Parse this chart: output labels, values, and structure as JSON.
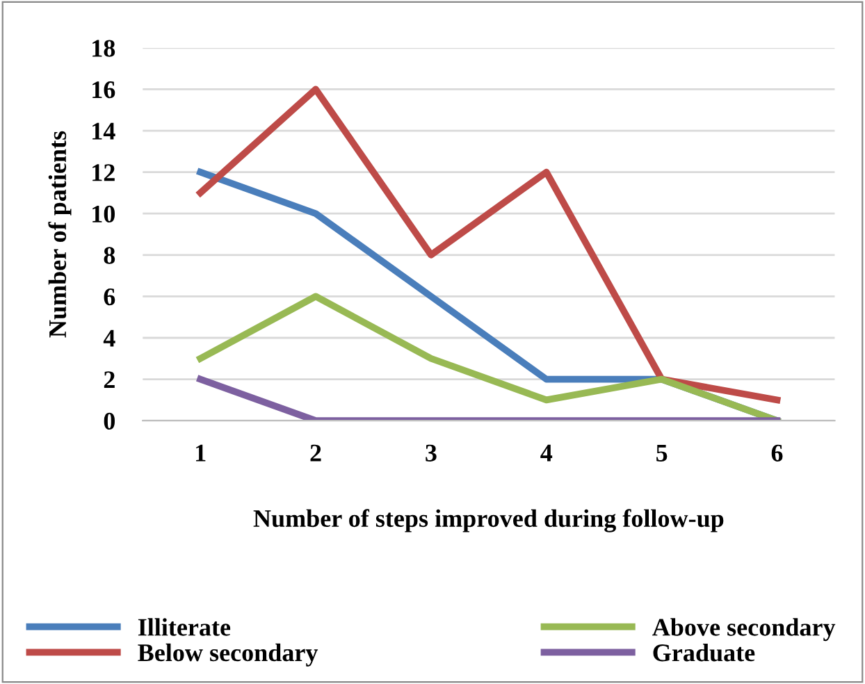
{
  "chart_data": {
    "type": "line",
    "xlabel": "Number of steps improved during follow-up",
    "ylabel": "Number of patients",
    "categories": [
      "1",
      "2",
      "3",
      "4",
      "5",
      "6"
    ],
    "series": [
      {
        "name": "Illiterate",
        "color": "#4a7ebb",
        "values": [
          12,
          10,
          6,
          2,
          2,
          0
        ]
      },
      {
        "name": "Below secondary",
        "color": "#be4b48",
        "values": [
          11,
          16,
          8,
          12,
          2,
          1
        ]
      },
      {
        "name": "Above secondary",
        "color": "#98b954",
        "values": [
          3,
          6,
          3,
          1,
          2,
          0
        ]
      },
      {
        "name": "Graduate",
        "color": "#7d60a0",
        "values": [
          2,
          0,
          0,
          0,
          0,
          0
        ]
      }
    ],
    "ylim": [
      0,
      18
    ],
    "yticks": [
      0,
      2,
      4,
      6,
      8,
      10,
      12,
      14,
      16,
      18
    ],
    "grid": "y",
    "legend": "bottom",
    "marker": "none",
    "line_style": "solid"
  }
}
